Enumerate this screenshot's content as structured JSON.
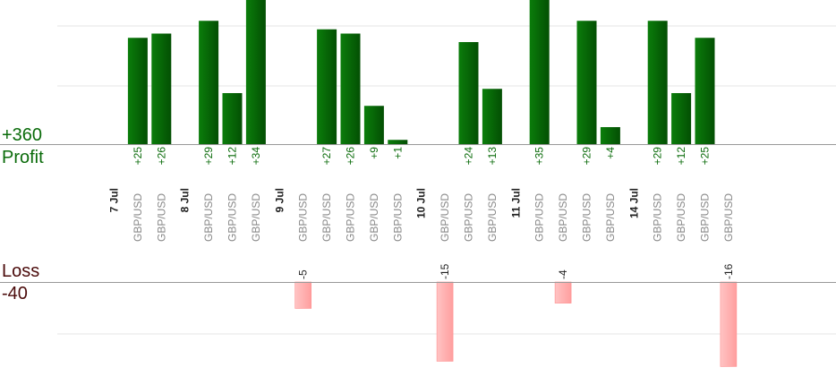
{
  "labels": {
    "profit_max": "+360",
    "profit": "Profit",
    "loss": "Loss",
    "loss_min": "-40"
  },
  "colors": {
    "profit_bar": "#0a6b0a",
    "profit_text": "#0a6b0a",
    "loss_bar": "#ffb3b3",
    "loss_text": "#4a0a0a",
    "grid": "#e6e6e6",
    "axis": "#999999"
  },
  "chart_data": {
    "type": "bar",
    "title": "",
    "profit_axis": {
      "max_label": "+360",
      "label": "Profit"
    },
    "loss_axis": {
      "min_label": "-40",
      "label": "Loss"
    },
    "columns": [
      {
        "date": "7 Jul"
      },
      {
        "pair": "GBP/USD",
        "value": 25,
        "label": "+25"
      },
      {
        "pair": "GBP/USD",
        "value": 26,
        "label": "+26"
      },
      {
        "date": "8 Jul"
      },
      {
        "pair": "GBP/USD",
        "value": 29,
        "label": "+29"
      },
      {
        "pair": "GBP/USD",
        "value": 12,
        "label": "+12"
      },
      {
        "pair": "GBP/USD",
        "value": 34,
        "label": "+34"
      },
      {
        "date": "9 Jul"
      },
      {
        "pair": "GBP/USD",
        "value": -5,
        "label": "-5"
      },
      {
        "pair": "GBP/USD",
        "value": 27,
        "label": "+27"
      },
      {
        "pair": "GBP/USD",
        "value": 26,
        "label": "+26"
      },
      {
        "pair": "GBP/USD",
        "value": 9,
        "label": "+9"
      },
      {
        "pair": "GBP/USD",
        "value": 1,
        "label": "+1"
      },
      {
        "date": "10 Jul"
      },
      {
        "pair": "GBP/USD",
        "value": -15,
        "label": "-15"
      },
      {
        "pair": "GBP/USD",
        "value": 24,
        "label": "+24"
      },
      {
        "pair": "GBP/USD",
        "value": 13,
        "label": "+13"
      },
      {
        "date": "11 Jul"
      },
      {
        "pair": "GBP/USD",
        "value": 35,
        "label": "+35"
      },
      {
        "pair": "GBP/USD",
        "value": -4,
        "label": "-4"
      },
      {
        "pair": "GBP/USD",
        "value": 29,
        "label": "+29"
      },
      {
        "pair": "GBP/USD",
        "value": 4,
        "label": "+4"
      },
      {
        "date": "14 Jul"
      },
      {
        "pair": "GBP/USD",
        "value": 29,
        "label": "+29"
      },
      {
        "pair": "GBP/USD",
        "value": 12,
        "label": "+12"
      },
      {
        "pair": "GBP/USD",
        "value": 25,
        "label": "+25"
      },
      {
        "pair": "GBP/USD",
        "value": -16,
        "label": "-16"
      }
    ]
  }
}
